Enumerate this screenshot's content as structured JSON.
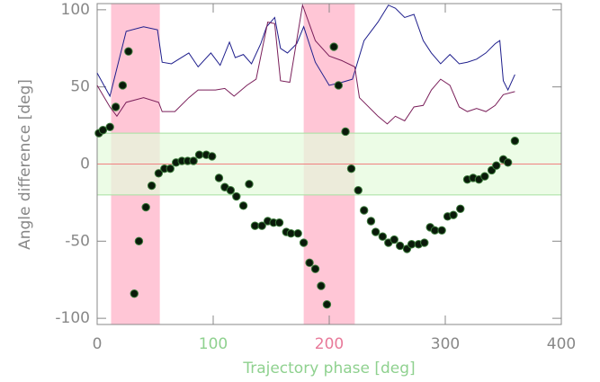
{
  "chart_data": {
    "type": "scatter",
    "x_label": "Trajectory phase [deg]",
    "y_label": "Angle difference [deg]",
    "x_label_color": "#8fd18f",
    "xlim": [
      0,
      400
    ],
    "ylim": [
      -104,
      104
    ],
    "xticks": [
      0,
      100,
      200,
      300,
      400
    ],
    "xtick_colors": [
      "#888888",
      "#8fd18f",
      "#e87a9a",
      "#888888",
      "#888888"
    ],
    "yticks": [
      -100,
      -50,
      0,
      50,
      100
    ],
    "x_bands": [
      [
        12,
        54
      ],
      [
        178,
        222
      ]
    ],
    "x_band_color": "#ffc6d6",
    "y_band": [
      -20,
      20
    ],
    "y_band_color": "#e4fbdc",
    "y_band_edge_color": "#a6e0a0",
    "zero_line_color": "#f08080",
    "series": [
      {
        "style": "line",
        "color": "#1e1e8c",
        "x": [
          0,
          11,
          25,
          40,
          52,
          56,
          64,
          79,
          87,
          98,
          106,
          114,
          119,
          126,
          133,
          141,
          146,
          153,
          158,
          164,
          172,
          178,
          188,
          200,
          211,
          220,
          230,
          242,
          251,
          257,
          265,
          273,
          281,
          288,
          296,
          304,
          312,
          319,
          327,
          335,
          343,
          347,
          350,
          354,
          360
        ],
        "values": [
          59,
          44,
          86,
          89,
          87,
          66,
          65,
          72,
          63,
          72,
          64,
          79,
          69,
          71,
          65,
          78,
          89,
          95,
          75,
          72,
          78,
          89,
          66,
          51,
          53,
          55,
          80,
          92,
          103,
          101,
          95,
          97,
          80,
          72,
          65,
          71,
          65,
          66,
          68,
          72,
          78,
          80,
          54,
          48,
          58
        ]
      },
      {
        "style": "line",
        "color": "#7a1f5a",
        "x": [
          0,
          11,
          17,
          25,
          40,
          53,
          56,
          67,
          79,
          87,
          102,
          110,
          118,
          129,
          137,
          147,
          153,
          158,
          166,
          177,
          188,
          200,
          211,
          222,
          226,
          242,
          250,
          257,
          265,
          273,
          281,
          288,
          296,
          304,
          312,
          319,
          327,
          335,
          343,
          350,
          360
        ],
        "values": [
          51,
          37,
          31,
          40,
          43,
          40,
          34,
          34,
          43,
          48,
          48,
          49,
          44,
          51,
          55,
          92,
          91,
          54,
          53,
          103,
          80,
          70,
          67,
          63,
          43,
          31,
          26,
          31,
          28,
          37,
          38,
          48,
          55,
          51,
          37,
          34,
          36,
          34,
          38,
          45,
          47
        ]
      },
      {
        "style": "markers",
        "color": "#0a1a0a",
        "edge_color": "#3a7a3a",
        "x": [
          1.5,
          5,
          11,
          16,
          22,
          27,
          32,
          36,
          42,
          47,
          53,
          58,
          63,
          68,
          73,
          78,
          83,
          88,
          94,
          99,
          105,
          110,
          115,
          120,
          126,
          131,
          136,
          142,
          147,
          152,
          157,
          163,
          167,
          173,
          178,
          183,
          188,
          193,
          198,
          204,
          208,
          214,
          219,
          225,
          230,
          236,
          240,
          246,
          251,
          256,
          261,
          267,
          271,
          277,
          282,
          287,
          291,
          297,
          302,
          307,
          313,
          319,
          324,
          329,
          334,
          340,
          344,
          350,
          354,
          360
        ],
        "values": [
          20,
          22,
          24,
          37,
          51,
          73,
          -84,
          -50,
          -28,
          -14,
          -6,
          -3,
          -3,
          1,
          2,
          2,
          2,
          6,
          6,
          5,
          -9,
          -15,
          -17,
          -21,
          -27,
          -13,
          -40,
          -40,
          -37,
          -38,
          -38,
          -44,
          -45,
          -45,
          -51,
          -64,
          -68,
          -79,
          -91,
          76,
          51,
          21,
          -3,
          -17,
          -30,
          -37,
          -44,
          -47,
          -51,
          -49,
          -53,
          -55,
          -52,
          -52,
          -51,
          -41,
          -43,
          -43,
          -34,
          -33,
          -29,
          -10,
          -9,
          -10,
          -8,
          -4,
          -1,
          3,
          1,
          15
        ]
      }
    ]
  }
}
